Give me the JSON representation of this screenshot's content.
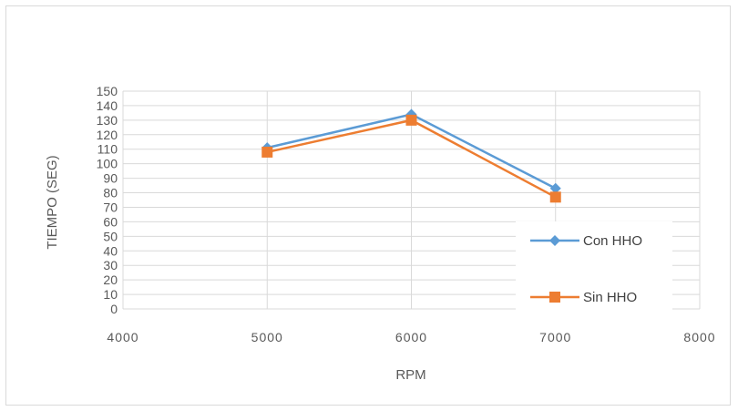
{
  "chart_data": {
    "type": "scatter",
    "title": "",
    "xlabel": "RPM",
    "ylabel": "TIEMPO (SEG)",
    "xlim": [
      4000,
      8000
    ],
    "ylim": [
      0,
      150
    ],
    "x_ticks": [
      "4000",
      "5000",
      "6000",
      "7000",
      "8000"
    ],
    "y_ticks": [
      "0",
      "10",
      "20",
      "30",
      "40",
      "50",
      "60",
      "70",
      "80",
      "90",
      "100",
      "110",
      "120",
      "130",
      "140",
      "150"
    ],
    "grid": true,
    "legend_position": "bottom-right",
    "series": [
      {
        "name": "Con HHO",
        "color": "#5b9bd5",
        "marker": "diamond",
        "x": [
          5000,
          6000,
          7000
        ],
        "y": [
          111,
          134,
          83
        ]
      },
      {
        "name": "Sin HHO",
        "color": "#ed7d31",
        "marker": "square",
        "x": [
          5000,
          6000,
          7000
        ],
        "y": [
          108,
          130,
          77
        ]
      }
    ]
  }
}
